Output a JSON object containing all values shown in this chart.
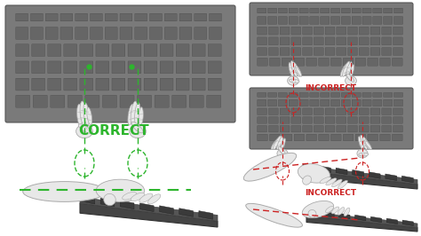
{
  "background_color": "#ffffff",
  "correct_label": "CORRECT",
  "correct_color": "#2db52d",
  "incorrect_label": "INCORRECT",
  "incorrect_color": "#cc2222",
  "figsize": [
    4.74,
    2.66
  ],
  "dpi": 100,
  "keyboard_face": "#7a7a7a",
  "keyboard_edge": "#555555",
  "keyboard_key": "#666666",
  "keyboard_key_edge": "#444444",
  "hand_fill": "#e8e8e8",
  "hand_edge": "#aaaaaa",
  "dashed_green": "#2db52d",
  "dashed_red": "#cc2222"
}
